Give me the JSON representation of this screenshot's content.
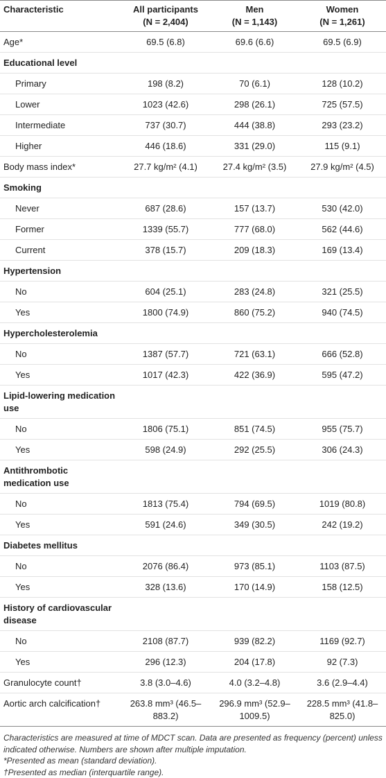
{
  "table": {
    "header": [
      "Characteristic",
      {
        "label": "All participants",
        "n": "(N = 2,404)"
      },
      {
        "label": "Men",
        "n": "(N = 1,143)"
      },
      {
        "label": "Women",
        "n": "(N = 1,261)"
      }
    ],
    "rows": [
      {
        "label": "Age*",
        "values": [
          "69.5 (6.8)",
          "69.6 (6.6)",
          "69.5 (6.9)"
        ]
      },
      {
        "heading": "Educational level",
        "rows": [
          {
            "label": "Primary",
            "values": [
              "198 (8.2)",
              "70 (6.1)",
              "128 (10.2)"
            ]
          },
          {
            "label": "Lower",
            "values": [
              "1023 (42.6)",
              "298 (26.1)",
              "725 (57.5)"
            ]
          },
          {
            "label": "Intermediate",
            "values": [
              "737 (30.7)",
              "444 (38.8)",
              "293 (23.2)"
            ]
          },
          {
            "label": "Higher",
            "values": [
              "446 (18.6)",
              "331 (29.0)",
              "115 (9.1)"
            ]
          }
        ]
      },
      {
        "label": "Body mass index*",
        "values": [
          "27.7 kg/m² (4.1)",
          "27.4 kg/m² (3.5)",
          "27.9 kg/m² (4.5)"
        ]
      },
      {
        "heading": "Smoking",
        "rows": [
          {
            "label": "Never",
            "values": [
              "687 (28.6)",
              "157 (13.7)",
              "530 (42.0)"
            ]
          },
          {
            "label": "Former",
            "values": [
              "1339 (55.7)",
              "777 (68.0)",
              "562 (44.6)"
            ]
          },
          {
            "label": "Current",
            "values": [
              "378 (15.7)",
              "209 (18.3)",
              "169 (13.4)"
            ]
          }
        ]
      },
      {
        "heading": "Hypertension",
        "rows": [
          {
            "label": "No",
            "values": [
              "604 (25.1)",
              "283 (24.8)",
              "321 (25.5)"
            ]
          },
          {
            "label": "Yes",
            "values": [
              "1800 (74.9)",
              "860 (75.2)",
              "940 (74.5)"
            ]
          }
        ]
      },
      {
        "heading": "Hypercholesterolemia",
        "rows": [
          {
            "label": "No",
            "values": [
              "1387 (57.7)",
              "721 (63.1)",
              "666 (52.8)"
            ]
          },
          {
            "label": "Yes",
            "values": [
              "1017 (42.3)",
              "422 (36.9)",
              "595 (47.2)"
            ]
          }
        ]
      },
      {
        "heading": "Lipid-lowering medication use",
        "rows": [
          {
            "label": "No",
            "values": [
              "1806 (75.1)",
              "851 (74.5)",
              "955 (75.7)"
            ]
          },
          {
            "label": "Yes",
            "values": [
              "598 (24.9)",
              "292 (25.5)",
              "306 (24.3)"
            ]
          }
        ]
      },
      {
        "heading": "Antithrombotic medication use",
        "rows": [
          {
            "label": "No",
            "values": [
              "1813 (75.4)",
              "794 (69.5)",
              "1019 (80.8)"
            ]
          },
          {
            "label": "Yes",
            "values": [
              "591 (24.6)",
              "349 (30.5)",
              "242 (19.2)"
            ]
          }
        ]
      },
      {
        "heading": "Diabetes mellitus",
        "rows": [
          {
            "label": "No",
            "values": [
              "2076 (86.4)",
              "973 (85.1)",
              "1103 (87.5)"
            ]
          },
          {
            "label": "Yes",
            "values": [
              "328 (13.6)",
              "170 (14.9)",
              "158 (12.5)"
            ]
          }
        ]
      },
      {
        "heading": "History of cardiovascular disease",
        "rows": [
          {
            "label": "No",
            "values": [
              "2108 (87.7)",
              "939 (82.2)",
              "1169 (92.7)"
            ]
          },
          {
            "label": "Yes",
            "values": [
              "296 (12.3)",
              "204 (17.8)",
              "92 (7.3)"
            ]
          }
        ]
      },
      {
        "label": "Granulocyte count†",
        "values": [
          "3.8 (3.0–4.6)",
          "4.0 (3.2–4.8)",
          "3.6 (2.9–4.4)"
        ]
      },
      {
        "label": "Aortic arch calcification†",
        "values": [
          "263.8 mm³ (46.5–883.2)",
          "296.9 mm³ (52.9–1009.5)",
          "228.5 mm³ (41.8–825.0)"
        ]
      }
    ],
    "footnotes": [
      "Characteristics are measured at time of MDCT scan. Data are presented as frequency (percent) unless indicated otherwise. Numbers are shown after multiple imputation.",
      "*Presented as mean (standard deviation).",
      "†Presented as median (interquartile range)."
    ]
  }
}
